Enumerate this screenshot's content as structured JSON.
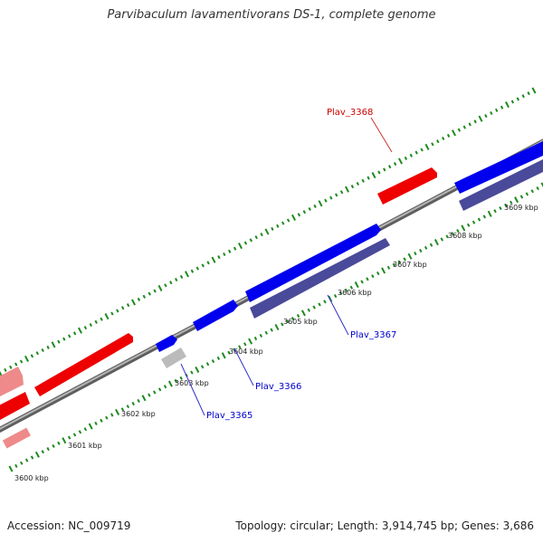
{
  "title": "Parvibaculum lavamentivorans DS-1, complete genome",
  "footer": {
    "accession": "Accession: NC_009719",
    "summary": "Topology: circular; Length: 3,914,745 bp; Genes: 3,686"
  },
  "colors": {
    "backbone": "#8a8a8a",
    "tick": "#1e8a1e",
    "forward_gene": "#0000ee",
    "reverse_gene": "#ee0000",
    "rna_gene": "#4a4a9a",
    "pseudo_gene": "#bbbbbb",
    "faded_gene": "#ef8a8a"
  },
  "ticks": {
    "labels": [
      "3600 kbp",
      "3601 kbp",
      "3602 kbp",
      "3603 kbp",
      "3604 kbp",
      "3605 kbp",
      "3606 kbp",
      "3607 kbp",
      "3608 kbp",
      "3609 kbp"
    ]
  },
  "gene_labels": [
    {
      "name": "Plav_3365",
      "color": "#0000cc"
    },
    {
      "name": "Plav_3366",
      "color": "#0000cc"
    },
    {
      "name": "Plav_3367",
      "color": "#0000cc"
    },
    {
      "name": "Plav_3368",
      "color": "#cc0000"
    }
  ]
}
